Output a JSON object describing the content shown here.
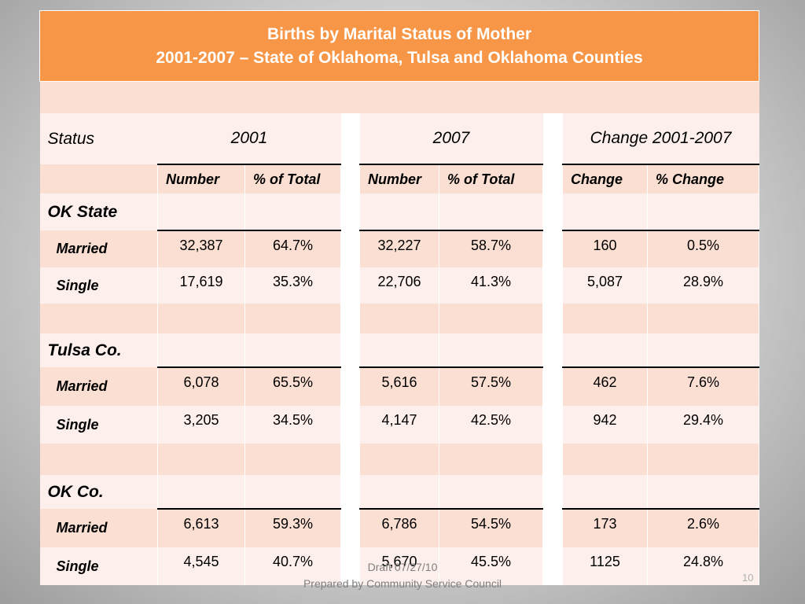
{
  "title": {
    "line1": "Births by Marital Status of Mother",
    "line2": "2001-2007 – State of Oklahoma, Tulsa and Oklahoma Counties"
  },
  "table": {
    "status_header": "Status",
    "year1": "2001",
    "year2": "2007",
    "change_header": "Change 2001-2007",
    "sub": {
      "number1": "Number",
      "pct1": "% of Total",
      "number2": "Number",
      "pct2": "% of Total",
      "change": "Change",
      "pct_change": "% Change"
    },
    "groups": [
      {
        "name": "OK State",
        "rows": [
          {
            "label": "Married",
            "n2001": "32,387",
            "p2001": "64.7%",
            "n2007": "32,227",
            "p2007": "58.7%",
            "change": "160",
            "pct_change": "0.5%"
          },
          {
            "label": "Single",
            "n2001": "17,619",
            "p2001": "35.3%",
            "n2007": "22,706",
            "p2007": "41.3%",
            "change": "5,087",
            "pct_change": "28.9%"
          }
        ]
      },
      {
        "name": "Tulsa Co.",
        "rows": [
          {
            "label": "Married",
            "n2001": "6,078",
            "p2001": "65.5%",
            "n2007": "5,616",
            "p2007": "57.5%",
            "change": "462",
            "pct_change": "7.6%"
          },
          {
            "label": "Single",
            "n2001": "3,205",
            "p2001": "34.5%",
            "n2007": "4,147",
            "p2007": "42.5%",
            "change": "942",
            "pct_change": "29.4%"
          }
        ]
      },
      {
        "name": "OK Co.",
        "rows": [
          {
            "label": "Married",
            "n2001": "6,613",
            "p2001": "59.3%",
            "n2007": "6,786",
            "p2007": "54.5%",
            "change": "173",
            "pct_change": "2.6%"
          },
          {
            "label": "Single",
            "n2001": "4,545",
            "p2001": "40.7%",
            "n2007": "5,670",
            "p2007": "45.5%",
            "change": "1125",
            "pct_change": "24.8%"
          }
        ]
      }
    ]
  },
  "footer": {
    "line1": "Draft 07/27/10",
    "line2": "Prepared by Community Service Council",
    "page_number": "10"
  },
  "colors": {
    "title_bg": "#f79646",
    "row_tan": "#fbdfd2",
    "row_light": "#fdefec"
  }
}
